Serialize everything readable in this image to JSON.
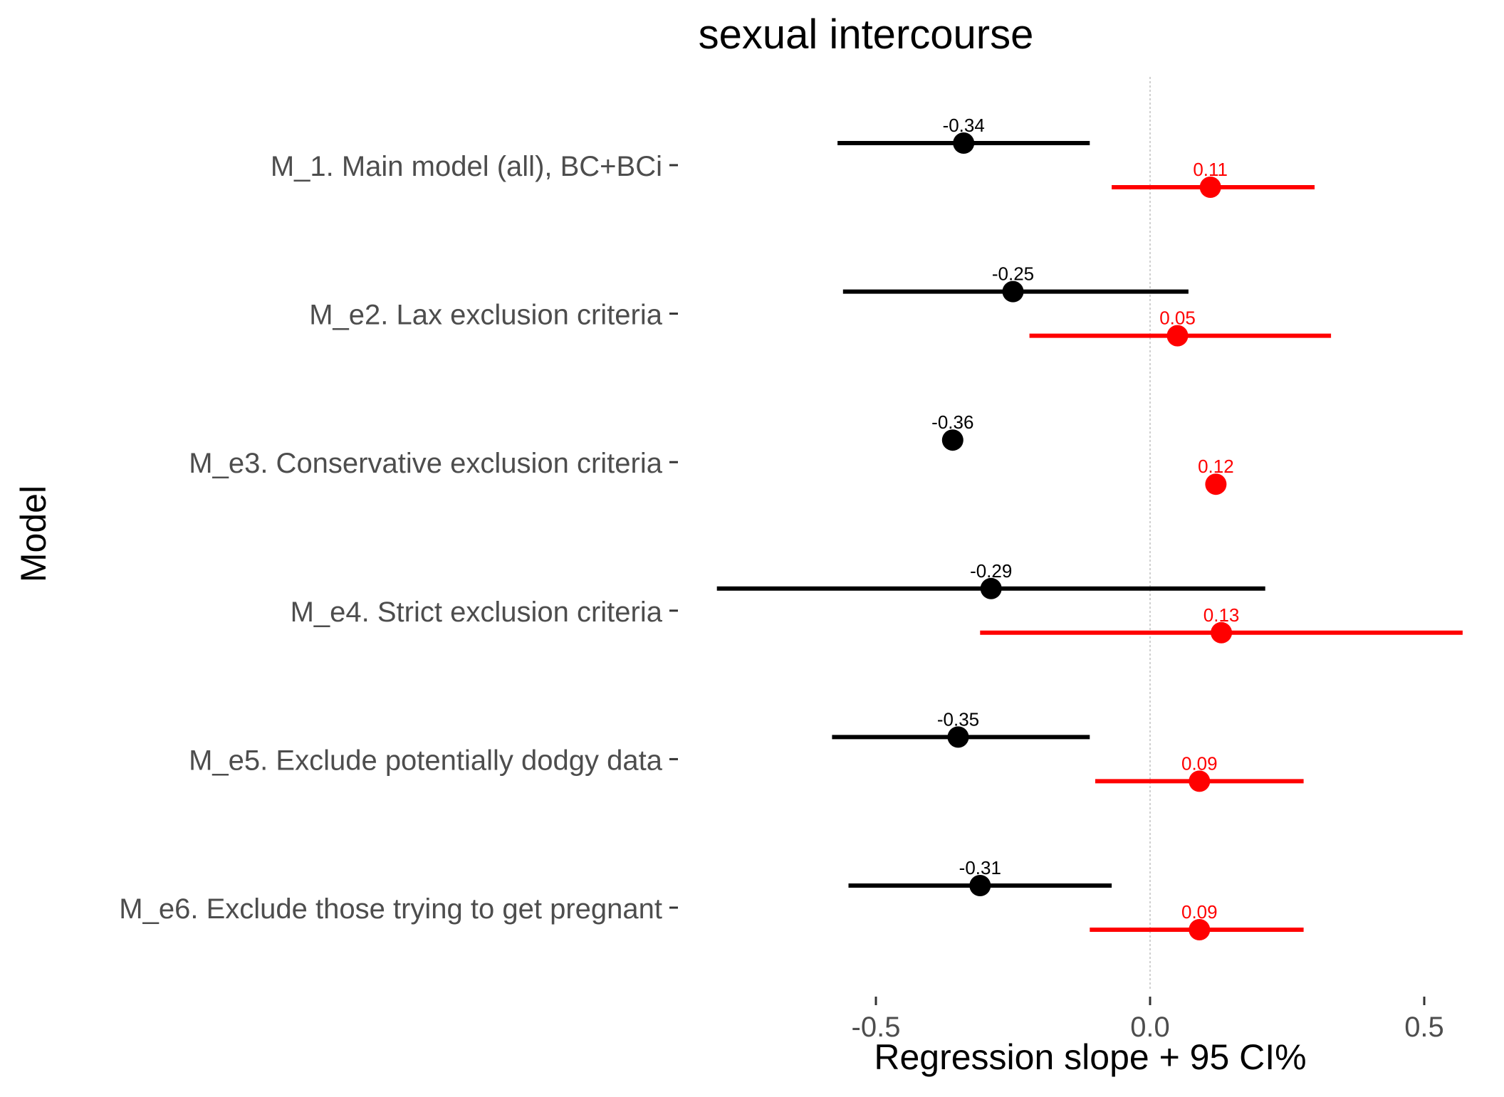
{
  "chart_data": {
    "type": "forest",
    "title": "sexual intercourse",
    "xlabel": "Regression slope + 95 CI%",
    "ylabel": "Model",
    "xlim": [
      -0.8,
      0.6
    ],
    "xticks": [
      -0.5,
      0.0,
      0.5
    ],
    "xtick_labels": [
      "-0.5",
      "0.0",
      "0.5"
    ],
    "reference_line": 0.0,
    "grid": false,
    "categories": [
      "M_1. Main model (all), BC+BCi",
      "M_e2. Lax exclusion criteria",
      "M_e3. Conservative exclusion criteria",
      "M_e4. Strict exclusion criteria",
      "M_e5. Exclude potentially dodgy data",
      "M_e6. Exclude those trying to get pregnant"
    ],
    "series": [
      {
        "color": "#000000",
        "estimates": [
          -0.34,
          -0.25,
          -0.36,
          -0.29,
          -0.35,
          -0.31
        ],
        "ci_low": [
          -0.57,
          -0.56,
          null,
          -0.79,
          -0.58,
          -0.55
        ],
        "ci_high": [
          -0.11,
          0.07,
          null,
          0.21,
          -0.11,
          -0.07
        ],
        "labels": [
          "-0.34",
          "-0.25",
          "-0.36",
          "-0.29",
          "-0.35",
          "-0.31"
        ]
      },
      {
        "color": "#ff0000",
        "estimates": [
          0.11,
          0.05,
          0.12,
          0.13,
          0.09,
          0.09
        ],
        "ci_low": [
          -0.07,
          -0.22,
          null,
          -0.31,
          -0.1,
          -0.11
        ],
        "ci_high": [
          0.3,
          0.33,
          null,
          0.57,
          0.28,
          0.28
        ],
        "labels": [
          "0.11",
          "0.05",
          "0.12",
          "0.13",
          "0.09",
          "0.09"
        ]
      }
    ]
  }
}
